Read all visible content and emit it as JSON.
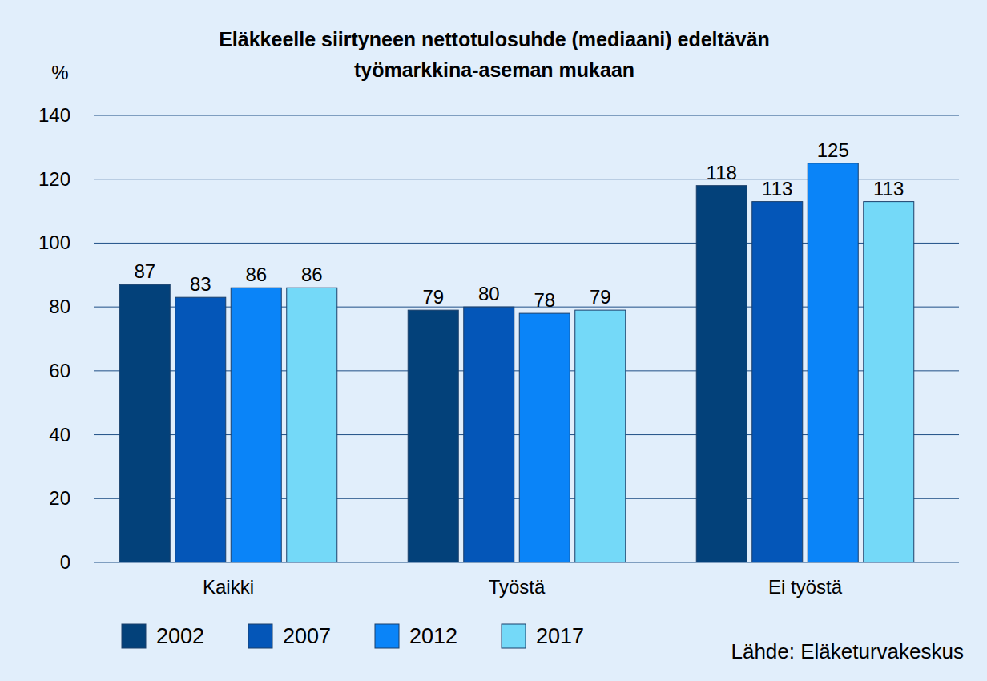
{
  "chart_data": {
    "type": "bar",
    "title": "Eläkkeelle siirtyneen nettotulosuhde (mediaani) edeltävän työmarkkina-aseman mukaan",
    "ylabel": "%",
    "source": "Lähde: Eläketurvakeskus",
    "categories": [
      "Kaikki",
      "Työstä",
      "Ei työstä"
    ],
    "series": [
      {
        "name": "2002",
        "color": "#03417a",
        "values": [
          87,
          79,
          118
        ]
      },
      {
        "name": "2007",
        "color": "#0456b8",
        "values": [
          83,
          80,
          113
        ]
      },
      {
        "name": "2012",
        "color": "#0a84f8",
        "values": [
          86,
          78,
          125
        ]
      },
      {
        "name": "2017",
        "color": "#74d9f8",
        "values": [
          86,
          79,
          113
        ]
      }
    ],
    "ylim": [
      0,
      140
    ],
    "yticks": [
      0,
      20,
      40,
      60,
      80,
      100,
      120,
      140
    ],
    "grid": true,
    "data_labels": true,
    "legend": "bottom"
  }
}
